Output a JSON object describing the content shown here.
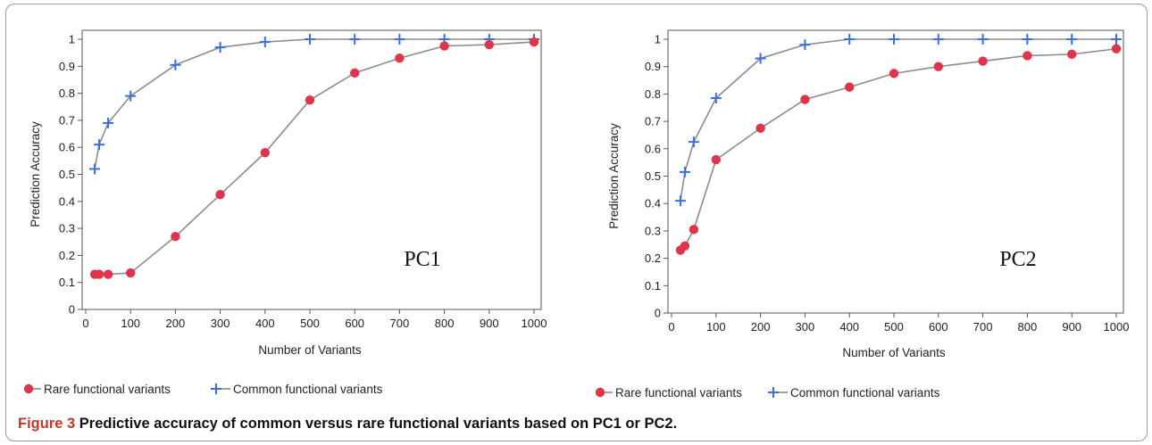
{
  "caption": {
    "figure_label": "Figure 3",
    "text": "Predictive accuracy of common versus rare functional variants based on PC1 or PC2."
  },
  "colors": {
    "rare": "#e0344a",
    "common": "#3a6fe0",
    "line": "#8c8c8c"
  },
  "chart_data": [
    {
      "type": "line",
      "panel_label": "PC1",
      "xlabel": "Number of Variants",
      "ylabel": "Prediction Accuracy",
      "xlim": [
        0,
        1000
      ],
      "ylim": [
        0,
        1
      ],
      "xticks": [
        0,
        100,
        200,
        300,
        400,
        500,
        600,
        700,
        800,
        900,
        1000
      ],
      "yticks": [
        0,
        0.1,
        0.2,
        0.3,
        0.4,
        0.5,
        0.6,
        0.7,
        0.8,
        0.9,
        1
      ],
      "ytick_labels": [
        "0",
        "0.1",
        "0.2",
        "0.3",
        "0.4",
        "0.5",
        "0.6",
        "0.7",
        "0.8",
        "0.9",
        "1"
      ],
      "x": [
        20,
        30,
        50,
        100,
        200,
        300,
        400,
        500,
        600,
        700,
        800,
        900,
        1000
      ],
      "series": [
        {
          "name": "Common functional variants",
          "marker": "plus",
          "values": [
            0.52,
            0.61,
            0.69,
            0.79,
            0.905,
            0.97,
            0.99,
            1.0,
            1.0,
            1.0,
            1.0,
            1.0,
            1.0
          ]
        },
        {
          "name": "Rare functional variants",
          "marker": "circle",
          "values": [
            0.13,
            0.13,
            0.13,
            0.135,
            0.27,
            0.425,
            0.58,
            0.775,
            0.875,
            0.93,
            0.975,
            0.98,
            0.99
          ]
        }
      ],
      "legend": [
        "Rare functional variants",
        "Common functional variants"
      ]
    },
    {
      "type": "line",
      "panel_label": "PC2",
      "xlabel": "Number of Variants",
      "ylabel": "Prediction Accuracy",
      "xlim": [
        0,
        1000
      ],
      "ylim": [
        0,
        1
      ],
      "xticks": [
        0,
        100,
        200,
        300,
        400,
        500,
        600,
        700,
        800,
        900,
        1000
      ],
      "yticks": [
        0,
        0.1,
        0.2,
        0.3,
        0.4,
        0.5,
        0.6,
        0.7,
        0.8,
        0.9,
        1
      ],
      "ytick_labels": [
        "0",
        "0.1",
        "0.2",
        "0.3",
        "0.4",
        "0.5",
        "0.6",
        "0.7",
        "0.8",
        "0.9",
        "1"
      ],
      "x": [
        20,
        30,
        50,
        100,
        200,
        300,
        400,
        500,
        600,
        700,
        800,
        900,
        1000
      ],
      "series": [
        {
          "name": "Common functional variants",
          "marker": "plus",
          "values": [
            0.41,
            0.515,
            0.625,
            0.785,
            0.93,
            0.98,
            1.0,
            1.0,
            1.0,
            1.0,
            1.0,
            1.0,
            1.0
          ]
        },
        {
          "name": "Rare functional variants",
          "marker": "circle",
          "values": [
            0.23,
            0.245,
            0.305,
            0.56,
            0.675,
            0.78,
            0.825,
            0.875,
            0.9,
            0.92,
            0.94,
            0.945,
            0.965
          ]
        }
      ],
      "legend": [
        "Rare functional variants",
        "Common functional variants"
      ]
    }
  ]
}
